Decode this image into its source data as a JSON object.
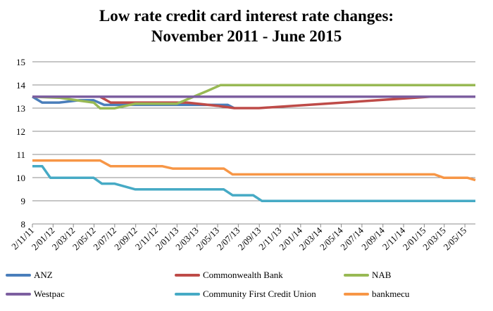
{
  "chart_data": {
    "type": "line",
    "title": [
      "Low rate credit card interest rate changes:",
      "November 2011 - June 2015"
    ],
    "xlabel": "",
    "ylabel": "",
    "ylim": [
      8,
      15
    ],
    "yticks": [
      "8",
      "9",
      "10",
      "11",
      "12",
      "13",
      "14",
      "15"
    ],
    "xlim": [
      "2011-11-02",
      "2015-06-02"
    ],
    "xticks": [
      "2/11/11",
      "2/01/12",
      "2/03/12",
      "2/05/12",
      "2/07/12",
      "2/09/12",
      "2/11/12",
      "2/01/13",
      "2/03/13",
      "2/05/13",
      "2/07/13",
      "2/09/13",
      "2/11/13",
      "2/01/14",
      "2/03/14",
      "2/05/14",
      "2/07/14",
      "2/09/14",
      "2/11/14",
      "2/01/15",
      "2/03/15",
      "2/05/15"
    ],
    "grid": "horizontal",
    "legend_position": "bottom",
    "series": [
      {
        "name": "ANZ",
        "color": "#4a7ebb",
        "points": [
          [
            "2011-11-02",
            13.49
          ],
          [
            "2011-12-01",
            13.24
          ],
          [
            "2012-01-20",
            13.24
          ],
          [
            "2012-03-20",
            13.34
          ],
          [
            "2012-05-01",
            13.34
          ],
          [
            "2012-06-01",
            13.14
          ],
          [
            "2013-06-01",
            13.14
          ],
          [
            "2013-06-20",
            13.0
          ]
        ]
      },
      {
        "name": "Commonwealth Bank",
        "color": "#be4b48",
        "points": [
          [
            "2011-11-02",
            13.49
          ],
          [
            "2012-05-20",
            13.49
          ],
          [
            "2012-06-20",
            13.24
          ],
          [
            "2013-02-01",
            13.24
          ],
          [
            "2013-05-01",
            13.1
          ],
          [
            "2013-06-20",
            13.0
          ],
          [
            "2013-09-01",
            13.0
          ],
          [
            "2015-01-20",
            13.49
          ],
          [
            "2015-06-02",
            13.49
          ]
        ]
      },
      {
        "name": "NAB",
        "color": "#98b954",
        "points": [
          [
            "2011-11-02",
            13.49
          ],
          [
            "2012-01-20",
            13.45
          ],
          [
            "2012-03-20",
            13.32
          ],
          [
            "2012-05-01",
            13.24
          ],
          [
            "2012-05-20",
            12.99
          ],
          [
            "2012-07-01",
            12.99
          ],
          [
            "2012-09-01",
            13.19
          ],
          [
            "2013-01-02",
            13.19
          ],
          [
            "2013-04-01",
            13.74
          ],
          [
            "2013-05-10",
            13.99
          ],
          [
            "2015-06-02",
            13.99
          ]
        ]
      },
      {
        "name": "Westpac",
        "color": "#7d5fa0",
        "points": [
          [
            "2011-11-02",
            13.49
          ],
          [
            "2015-06-02",
            13.49
          ]
        ]
      },
      {
        "name": "Community First Credit Union",
        "color": "#46aac5",
        "points": [
          [
            "2011-11-02",
            10.49
          ],
          [
            "2011-12-01",
            10.49
          ],
          [
            "2011-12-25",
            9.99
          ],
          [
            "2012-05-01",
            9.99
          ],
          [
            "2012-05-25",
            9.74
          ],
          [
            "2012-07-01",
            9.74
          ],
          [
            "2012-09-01",
            9.49
          ],
          [
            "2013-05-20",
            9.49
          ],
          [
            "2013-06-15",
            9.24
          ],
          [
            "2013-08-15",
            9.24
          ],
          [
            "2013-09-10",
            8.99
          ],
          [
            "2015-06-02",
            8.99
          ]
        ]
      },
      {
        "name": "bankmecu",
        "color": "#f79646",
        "points": [
          [
            "2011-11-02",
            10.74
          ],
          [
            "2012-05-20",
            10.74
          ],
          [
            "2012-06-20",
            10.49
          ],
          [
            "2012-11-20",
            10.49
          ],
          [
            "2012-12-20",
            10.39
          ],
          [
            "2013-05-20",
            10.39
          ],
          [
            "2013-06-15",
            10.14
          ],
          [
            "2015-02-01",
            10.14
          ],
          [
            "2015-03-01",
            9.99
          ],
          [
            "2015-05-10",
            9.99
          ],
          [
            "2015-06-02",
            9.89
          ]
        ]
      }
    ]
  }
}
